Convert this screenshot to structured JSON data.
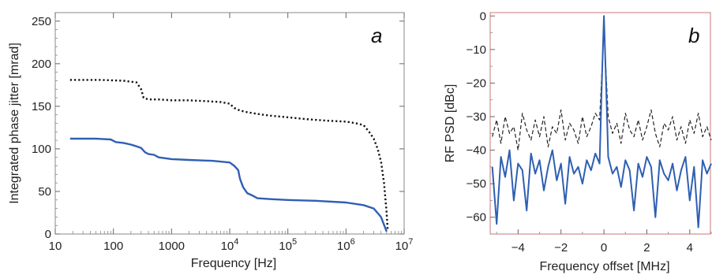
{
  "chart_data": [
    {
      "type": "line",
      "panel_label": "a",
      "xlabel": "Frequency [Hz]",
      "ylabel": "Integrated phase jitter [mrad]",
      "xscale": "log",
      "xlim": [
        10,
        10000000
      ],
      "ylim": [
        0,
        260
      ],
      "x_ticks": [
        10,
        100,
        1000,
        10000,
        100000,
        1000000,
        10000000
      ],
      "x_tick_labels": [
        {
          "base": "10",
          "exp": ""
        },
        {
          "base": "100",
          "exp": ""
        },
        {
          "base": "1000",
          "exp": ""
        },
        {
          "base": "10",
          "exp": "4"
        },
        {
          "base": "10",
          "exp": "5"
        },
        {
          "base": "10",
          "exp": "6"
        },
        {
          "base": "10",
          "exp": "7"
        }
      ],
      "y_ticks": [
        0,
        50,
        100,
        150,
        200,
        250
      ],
      "y_tick_labels": [
        "0",
        "50",
        "100",
        "150",
        "200",
        "250"
      ],
      "grid": false,
      "series": [
        {
          "style": "dotted",
          "color": "#111111",
          "x": [
            18,
            60,
            150,
            250,
            300,
            330,
            400,
            600,
            1000,
            2000,
            4000,
            7000,
            10000,
            12000,
            15000,
            20000,
            30000,
            50000,
            100000,
            200000,
            500000,
            1000000,
            1500000,
            2000000,
            2500000,
            3000000,
            3500000,
            4000000,
            4500000,
            5000000,
            5200000
          ],
          "y": [
            181,
            181,
            180,
            178,
            170,
            160,
            158,
            158,
            157,
            157,
            156,
            155,
            153,
            148,
            145,
            143,
            141,
            139,
            137,
            135,
            133,
            132,
            130,
            128,
            120,
            112,
            100,
            85,
            60,
            25,
            5
          ]
        },
        {
          "style": "solid",
          "color": "#2f5fb3",
          "x": [
            18,
            50,
            90,
            110,
            150,
            200,
            250,
            300,
            350,
            400,
            500,
            600,
            1000,
            2000,
            5000,
            10000,
            12000,
            14000,
            15000,
            17000,
            20000,
            25000,
            30000,
            50000,
            100000,
            300000,
            1000000,
            2000000,
            3000000,
            4000000,
            5000000
          ],
          "y": [
            112,
            112,
            111,
            108,
            107,
            105,
            103,
            101,
            96,
            94,
            93,
            90,
            88,
            87,
            86,
            84,
            80,
            75,
            65,
            55,
            48,
            45,
            42,
            41,
            40,
            39,
            37,
            34,
            30,
            20,
            3
          ]
        }
      ]
    },
    {
      "type": "line",
      "panel_label": "b",
      "xlabel": "Frequency offset [MHz]",
      "ylabel": "RF PSD [dBc]",
      "xlim": [
        -5.3,
        5.0
      ],
      "ylim": [
        -65,
        1
      ],
      "x_ticks": [
        -4,
        -2,
        0,
        2,
        4
      ],
      "x_tick_labels": [
        "−4",
        "−2",
        "0",
        "2",
        "4"
      ],
      "y_ticks": [
        0,
        -10,
        -20,
        -30,
        -40,
        -50,
        -60
      ],
      "y_tick_labels": [
        "0",
        "−10",
        "−20",
        "−30",
        "−40",
        "−50",
        "−60"
      ],
      "grid": false,
      "series": [
        {
          "style": "dashed",
          "color": "#222222",
          "x": [
            -5.2,
            -5.0,
            -4.8,
            -4.6,
            -4.4,
            -4.2,
            -4.0,
            -3.8,
            -3.6,
            -3.4,
            -3.2,
            -3.0,
            -2.8,
            -2.6,
            -2.4,
            -2.2,
            -2.0,
            -1.8,
            -1.6,
            -1.4,
            -1.2,
            -1.0,
            -0.8,
            -0.6,
            -0.4,
            -0.2,
            0.0,
            0.2,
            0.4,
            0.6,
            0.8,
            1.0,
            1.2,
            1.4,
            1.6,
            1.8,
            2.0,
            2.2,
            2.4,
            2.6,
            2.8,
            3.0,
            3.2,
            3.4,
            3.6,
            3.8,
            4.0,
            4.2,
            4.4,
            4.6,
            4.8,
            5.0
          ],
          "y": [
            -36,
            -31,
            -38,
            -30,
            -35,
            -33,
            -40,
            -29,
            -34,
            -37,
            -31,
            -36,
            -30,
            -39,
            -33,
            -35,
            -28,
            -37,
            -32,
            -34,
            -38,
            -30,
            -36,
            -33,
            -29,
            -31,
            -4,
            -30,
            -35,
            -32,
            -38,
            -29,
            -34,
            -36,
            -31,
            -37,
            -33,
            -28,
            -35,
            -39,
            -32,
            -34,
            -30,
            -37,
            -33,
            -38,
            -31,
            -35,
            -29,
            -36,
            -33,
            -37
          ]
        },
        {
          "style": "solid",
          "color": "#2f5fb3",
          "x": [
            -5.2,
            -5.0,
            -4.8,
            -4.6,
            -4.4,
            -4.2,
            -4.0,
            -3.8,
            -3.6,
            -3.4,
            -3.2,
            -3.0,
            -2.8,
            -2.6,
            -2.4,
            -2.2,
            -2.0,
            -1.8,
            -1.6,
            -1.4,
            -1.2,
            -1.0,
            -0.8,
            -0.6,
            -0.4,
            -0.2,
            -0.1,
            0.0,
            0.1,
            0.2,
            0.4,
            0.6,
            0.8,
            1.0,
            1.2,
            1.4,
            1.6,
            1.8,
            2.0,
            2.2,
            2.4,
            2.6,
            2.8,
            3.0,
            3.2,
            3.4,
            3.6,
            3.8,
            4.0,
            4.2,
            4.4,
            4.6,
            4.8,
            5.0
          ],
          "y": [
            -45,
            -62,
            -42,
            -48,
            -40,
            -55,
            -44,
            -46,
            -58,
            -41,
            -47,
            -43,
            -52,
            -45,
            -40,
            -49,
            -44,
            -56,
            -42,
            -47,
            -45,
            -50,
            -43,
            -46,
            -41,
            -44,
            -20,
            0,
            -20,
            -42,
            -47,
            -45,
            -51,
            -43,
            -46,
            -58,
            -44,
            -48,
            -42,
            -45,
            -60,
            -43,
            -47,
            -49,
            -44,
            -52,
            -46,
            -42,
            -55,
            -45,
            -63,
            -43,
            -47,
            -44
          ]
        }
      ]
    }
  ]
}
